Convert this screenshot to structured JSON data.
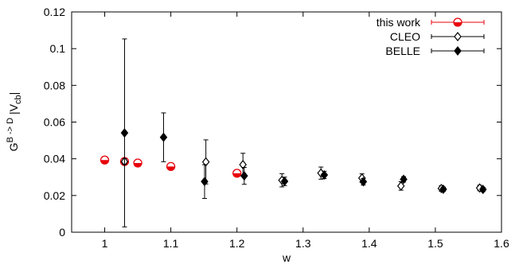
{
  "chart_data": {
    "type": "scatter",
    "title": "",
    "xlabel": "w",
    "ylabel": "G^{B->D} |V_cb|",
    "ylabel_parts": {
      "main": "G",
      "sup": "B -> D",
      "bar_main": "|V",
      "bar_sub": "cb",
      "bar_end": "|"
    },
    "xlim": [
      0.95,
      1.6
    ],
    "ylim": [
      0,
      0.12
    ],
    "x_ticks": [
      "1",
      "1.1",
      "1.2",
      "1.3",
      "1.4",
      "1.5",
      "1.6"
    ],
    "x_tick_values": [
      1.0,
      1.1,
      1.2,
      1.3,
      1.4,
      1.5,
      1.6
    ],
    "y_ticks": [
      "0",
      "0.02",
      "0.04",
      "0.06",
      "0.08",
      "0.1",
      "0.12"
    ],
    "y_tick_values": [
      0,
      0.02,
      0.04,
      0.06,
      0.08,
      0.1,
      0.12
    ],
    "grid": false,
    "legend_position": "top-right",
    "series": [
      {
        "name": "this work",
        "marker": "half-filled-circle",
        "color": "#e8000b",
        "points": [
          {
            "x": 1.0,
            "y": 0.0393,
            "err": 0.0006
          },
          {
            "x": 1.03,
            "y": 0.0385,
            "err": 0.0006
          },
          {
            "x": 1.05,
            "y": 0.0377,
            "err": 0.0006
          },
          {
            "x": 1.1,
            "y": 0.0358,
            "err": 0.0006
          },
          {
            "x": 1.2,
            "y": 0.0321,
            "err": 0.0006
          }
        ]
      },
      {
        "name": "CLEO",
        "marker": "open-diamond",
        "color": "#000000",
        "points": [
          {
            "x": 1.03,
            "y": 0.0385,
            "err": 0.0015
          },
          {
            "x": 1.153,
            "y": 0.0383,
            "err": 0.012
          },
          {
            "x": 1.209,
            "y": 0.0368,
            "err": 0.0062
          },
          {
            "x": 1.268,
            "y": 0.0283,
            "err": 0.0036
          },
          {
            "x": 1.327,
            "y": 0.0322,
            "err": 0.0033
          },
          {
            "x": 1.389,
            "y": 0.0295,
            "err": 0.0023
          },
          {
            "x": 1.448,
            "y": 0.0252,
            "err": 0.0023
          },
          {
            "x": 1.509,
            "y": 0.0238,
            "err": 0.0015
          },
          {
            "x": 1.567,
            "y": 0.0241,
            "err": 0.0015
          }
        ]
      },
      {
        "name": "BELLE",
        "marker": "filled-diamond",
        "color": "#000000",
        "points": [
          {
            "x": 1.03,
            "y": 0.0541,
            "err": 0.0512
          },
          {
            "x": 1.089,
            "y": 0.0517,
            "err": 0.0133
          },
          {
            "x": 1.151,
            "y": 0.0276,
            "err": 0.0092
          },
          {
            "x": 1.211,
            "y": 0.0307,
            "err": 0.0046
          },
          {
            "x": 1.272,
            "y": 0.0277,
            "err": 0.0023
          },
          {
            "x": 1.332,
            "y": 0.0312,
            "err": 0.002
          },
          {
            "x": 1.391,
            "y": 0.0275,
            "err": 0.0018
          },
          {
            "x": 1.452,
            "y": 0.0288,
            "err": 0.0015
          },
          {
            "x": 1.512,
            "y": 0.0234,
            "err": 0.0012
          },
          {
            "x": 1.572,
            "y": 0.0233,
            "err": 0.0012
          }
        ]
      }
    ]
  }
}
